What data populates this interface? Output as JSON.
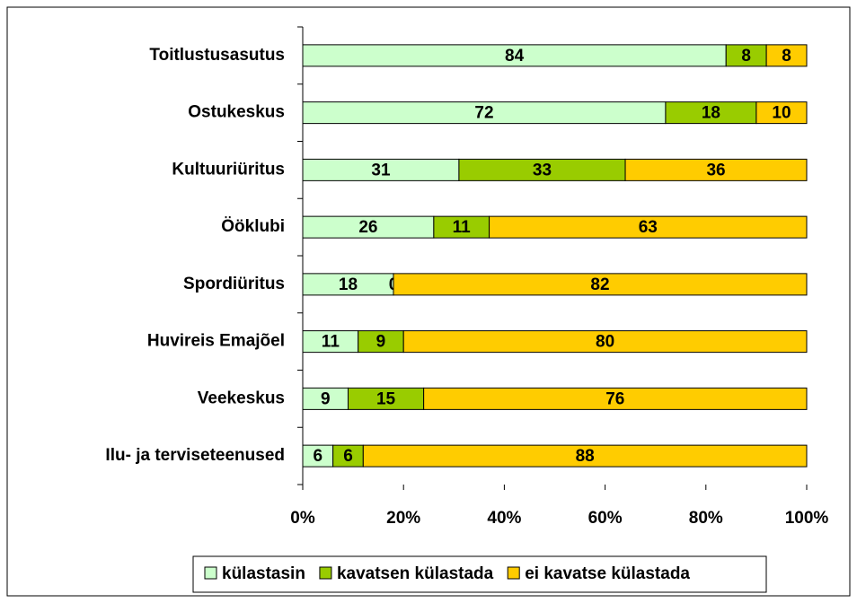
{
  "chart_data": {
    "type": "bar",
    "orientation": "horizontal",
    "stacked": true,
    "categories": [
      "Toitlustusasutus",
      "Ostukeskus",
      "Kultuuriüritus",
      "Ööklubi",
      "Spordiüritus",
      "Huvireis Emajõel",
      "Veekeskus",
      "Ilu- ja terviseteenused"
    ],
    "series": [
      {
        "name": "külastasin",
        "color": "#ccffcc",
        "values": [
          84,
          72,
          31,
          26,
          18,
          11,
          9,
          6
        ]
      },
      {
        "name": "kavatsen külastada",
        "color": "#99cc00",
        "values": [
          8,
          18,
          33,
          11,
          0,
          9,
          15,
          6
        ]
      },
      {
        "name": "ei kavatse külastada",
        "color": "#ffcc00",
        "values": [
          8,
          10,
          36,
          63,
          82,
          80,
          76,
          88
        ]
      }
    ],
    "xlim": [
      0,
      100
    ],
    "xticks": [
      {
        "value": 0,
        "label": "0%"
      },
      {
        "value": 20,
        "label": "20%"
      },
      {
        "value": 40,
        "label": "40%"
      },
      {
        "value": 60,
        "label": "60%"
      },
      {
        "value": 80,
        "label": "80%"
      },
      {
        "value": 100,
        "label": "100%"
      }
    ],
    "legend": "bottom"
  }
}
